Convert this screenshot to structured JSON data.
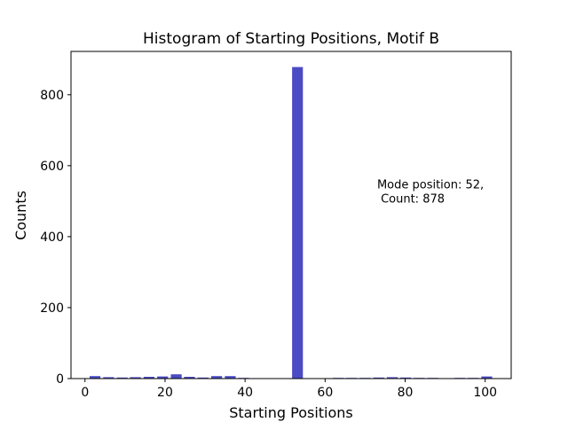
{
  "chart_data": {
    "type": "bar",
    "title": "Histogram of Starting Positions, Motif B",
    "xlabel": "Starting Positions",
    "ylabel": "Counts",
    "xlim": [
      -3.5,
      106.5
    ],
    "ylim": [
      0,
      922
    ],
    "xticks": [
      0,
      20,
      40,
      60,
      80,
      100
    ],
    "yticks": [
      0,
      200,
      400,
      600,
      800
    ],
    "bar_color": "#4b4bc4",
    "bar_width": 2.7,
    "bars": [
      {
        "x": 2.5,
        "value": 7
      },
      {
        "x": 5.9,
        "value": 4
      },
      {
        "x": 9.3,
        "value": 3
      },
      {
        "x": 12.6,
        "value": 4
      },
      {
        "x": 16.0,
        "value": 5
      },
      {
        "x": 19.4,
        "value": 6
      },
      {
        "x": 22.8,
        "value": 12
      },
      {
        "x": 26.1,
        "value": 5
      },
      {
        "x": 29.5,
        "value": 3
      },
      {
        "x": 32.9,
        "value": 7
      },
      {
        "x": 36.3,
        "value": 7
      },
      {
        "x": 39.6,
        "value": 2
      },
      {
        "x": 53.1,
        "value": 878
      },
      {
        "x": 63.3,
        "value": 2
      },
      {
        "x": 66.6,
        "value": 2
      },
      {
        "x": 70.0,
        "value": 2
      },
      {
        "x": 73.4,
        "value": 3
      },
      {
        "x": 76.8,
        "value": 4
      },
      {
        "x": 80.1,
        "value": 3
      },
      {
        "x": 83.5,
        "value": 2
      },
      {
        "x": 86.9,
        "value": 2
      },
      {
        "x": 93.6,
        "value": 2
      },
      {
        "x": 97.0,
        "value": 2
      },
      {
        "x": 100.4,
        "value": 6
      }
    ],
    "annotation": {
      "lines": [
        "Mode position: 52,",
        " Count: 878"
      ],
      "x": 73,
      "y": 536
    }
  }
}
